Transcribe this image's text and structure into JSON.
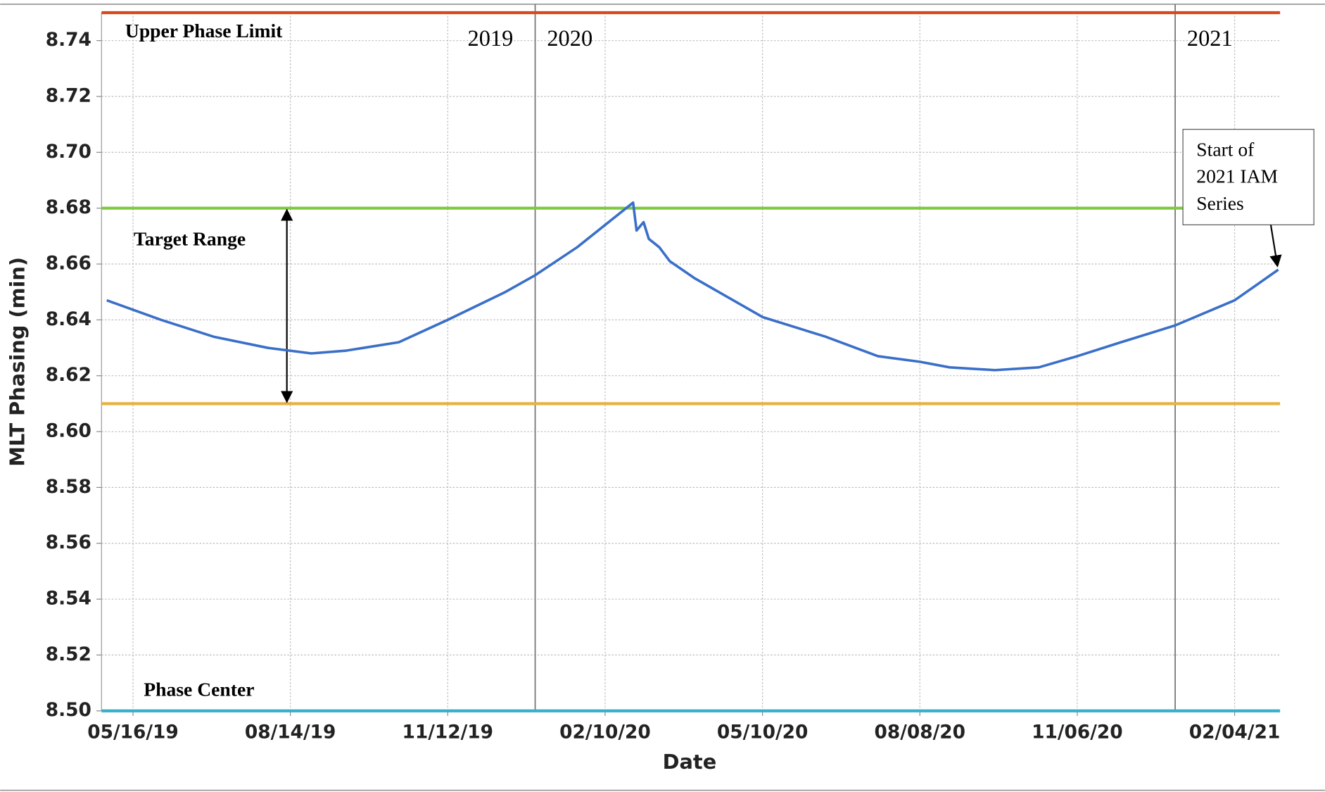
{
  "chart_data": {
    "type": "line",
    "x_label": "Date",
    "y_label": "MLT Phasing (min)",
    "xlim": [
      "04/28/19",
      "03/02/21"
    ],
    "xticks": [
      "05/16/19",
      "08/14/19",
      "11/12/19",
      "02/10/20",
      "05/10/20",
      "08/08/20",
      "11/06/20",
      "02/04/21"
    ],
    "ylim": [
      8.5,
      8.75
    ],
    "yticks": [
      {
        "value": 8.5,
        "label": "8.50"
      },
      8.52,
      8.54,
      8.56,
      8.58,
      {
        "value": 8.6,
        "label": "8.60"
      },
      8.62,
      8.64,
      8.66,
      8.68,
      {
        "value": 8.7,
        "label": "8.70"
      },
      8.72,
      8.74
    ],
    "grid": true,
    "series": [
      {
        "color": "#3a6fc9",
        "x": [
          "05/01/19",
          "06/01/19",
          "07/01/19",
          "08/01/19",
          "08/26/19",
          "09/15/19",
          "10/15/19",
          "11/12/19",
          "12/15/19",
          "01/01/20",
          "01/25/20",
          "02/26/20",
          "02/28/20",
          "03/03/20",
          "03/06/20",
          "03/12/20",
          "03/18/20",
          "03/25/20",
          "04/01/20",
          "05/10/20",
          "06/15/20",
          "07/15/20",
          "08/08/20",
          "08/25/20",
          "09/20/20",
          "10/15/20",
          "11/06/20",
          "12/01/20",
          "01/01/21",
          "02/04/21",
          "03/01/21"
        ],
        "values": [
          8.647,
          8.64,
          8.634,
          8.63,
          8.628,
          8.629,
          8.632,
          8.64,
          8.65,
          8.656,
          8.666,
          8.682,
          8.672,
          8.675,
          8.669,
          8.666,
          8.661,
          8.658,
          8.655,
          8.641,
          8.634,
          8.627,
          8.625,
          8.623,
          8.622,
          8.623,
          8.627,
          8.632,
          8.638,
          8.647,
          8.658
        ]
      }
    ],
    "reference_lines": [
      {
        "label": "Upper Phase Limit",
        "value": 8.75,
        "color": "#d9471c"
      },
      {
        "value": 8.68,
        "color": "#7ec83f"
      },
      {
        "value": 8.61,
        "color": "#e8b040"
      },
      {
        "label": "Phase Center",
        "value": 8.5,
        "color": "#3aaec8"
      }
    ],
    "target_range": {
      "text": "Target Range",
      "x": "08/12/19",
      "from": 8.61,
      "to": 8.68
    },
    "year_dividers": [
      {
        "x": "01/01/20",
        "left": "2019",
        "right": "2020"
      },
      {
        "x": "01/01/21",
        "right": "2021"
      }
    ],
    "callout": {
      "lines": [
        "Start of",
        "2021 IAM",
        "Series"
      ],
      "x": "03/01/21",
      "y": 8.658
    }
  }
}
